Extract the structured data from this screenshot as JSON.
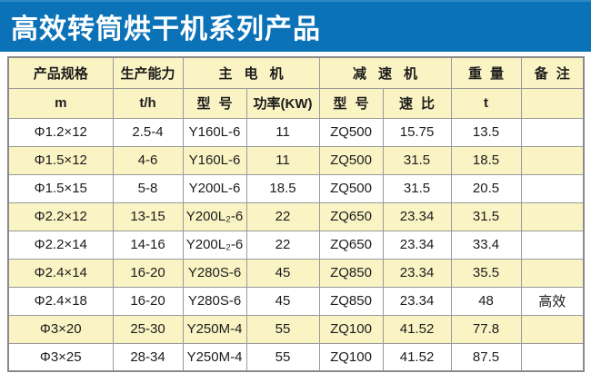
{
  "title": "高效转筒烘干机系列产品",
  "colors": {
    "title_bar": "#0c72b8",
    "row_highlight": "#faf3c4",
    "border": "#9a9a9a",
    "text": "#1c1c1c"
  },
  "chart_data": {
    "type": "table",
    "title": "高效转筒烘干机系列产品",
    "header_row1": [
      {
        "label": "产品规格",
        "colspan": 1,
        "spaced": false
      },
      {
        "label": "生产能力",
        "colspan": 1,
        "spaced": false
      },
      {
        "label": "主电机",
        "colspan": 2,
        "spaced": true
      },
      {
        "label": "减速机",
        "colspan": 2,
        "spaced": true
      },
      {
        "label": "重量",
        "colspan": 1,
        "spaced": true
      },
      {
        "label": "备注",
        "colspan": 1,
        "spaced": true
      }
    ],
    "header_row2": [
      {
        "label": "m",
        "spaced": false
      },
      {
        "label": "t/h",
        "spaced": false
      },
      {
        "label": "型号",
        "spaced": true
      },
      {
        "label": "功率(KW)",
        "spaced": false
      },
      {
        "label": "型号",
        "spaced": true
      },
      {
        "label": "速比",
        "spaced": true
      },
      {
        "label": "t",
        "spaced": false
      },
      {
        "label": "",
        "spaced": false
      }
    ],
    "rows": [
      [
        "Φ1.2×12",
        "2.5-4",
        "Y160L-6",
        "11",
        "ZQ500",
        "15.75",
        "13.5",
        ""
      ],
      [
        "Φ1.5×12",
        "4-6",
        "Y160L-6",
        "11",
        "ZQ500",
        "31.5",
        "18.5",
        ""
      ],
      [
        "Φ1.5×15",
        "5-8",
        "Y200L-6",
        "18.5",
        "ZQ500",
        "31.5",
        "20.5",
        ""
      ],
      [
        "Φ2.2×12",
        "13-15",
        "Y200L₂-6",
        "22",
        "ZQ650",
        "23.34",
        "31.5",
        ""
      ],
      [
        "Φ2.2×14",
        "14-16",
        "Y200L₂-6",
        "22",
        "ZQ650",
        "23.34",
        "33.4",
        ""
      ],
      [
        "Φ2.4×14",
        "16-20",
        "Y280S-6",
        "45",
        "ZQ850",
        "23.34",
        "35.5",
        ""
      ],
      [
        "Φ2.4×18",
        "16-20",
        "Y280S-6",
        "45",
        "ZQ850",
        "23.34",
        "48",
        "高效"
      ],
      [
        "Φ3×20",
        "25-30",
        "Y250M-4",
        "55",
        "ZQ100",
        "41.52",
        "77.8",
        ""
      ],
      [
        "Φ3×25",
        "28-34",
        "Y250M-4",
        "55",
        "ZQ100",
        "41.52",
        "87.5",
        ""
      ]
    ]
  }
}
